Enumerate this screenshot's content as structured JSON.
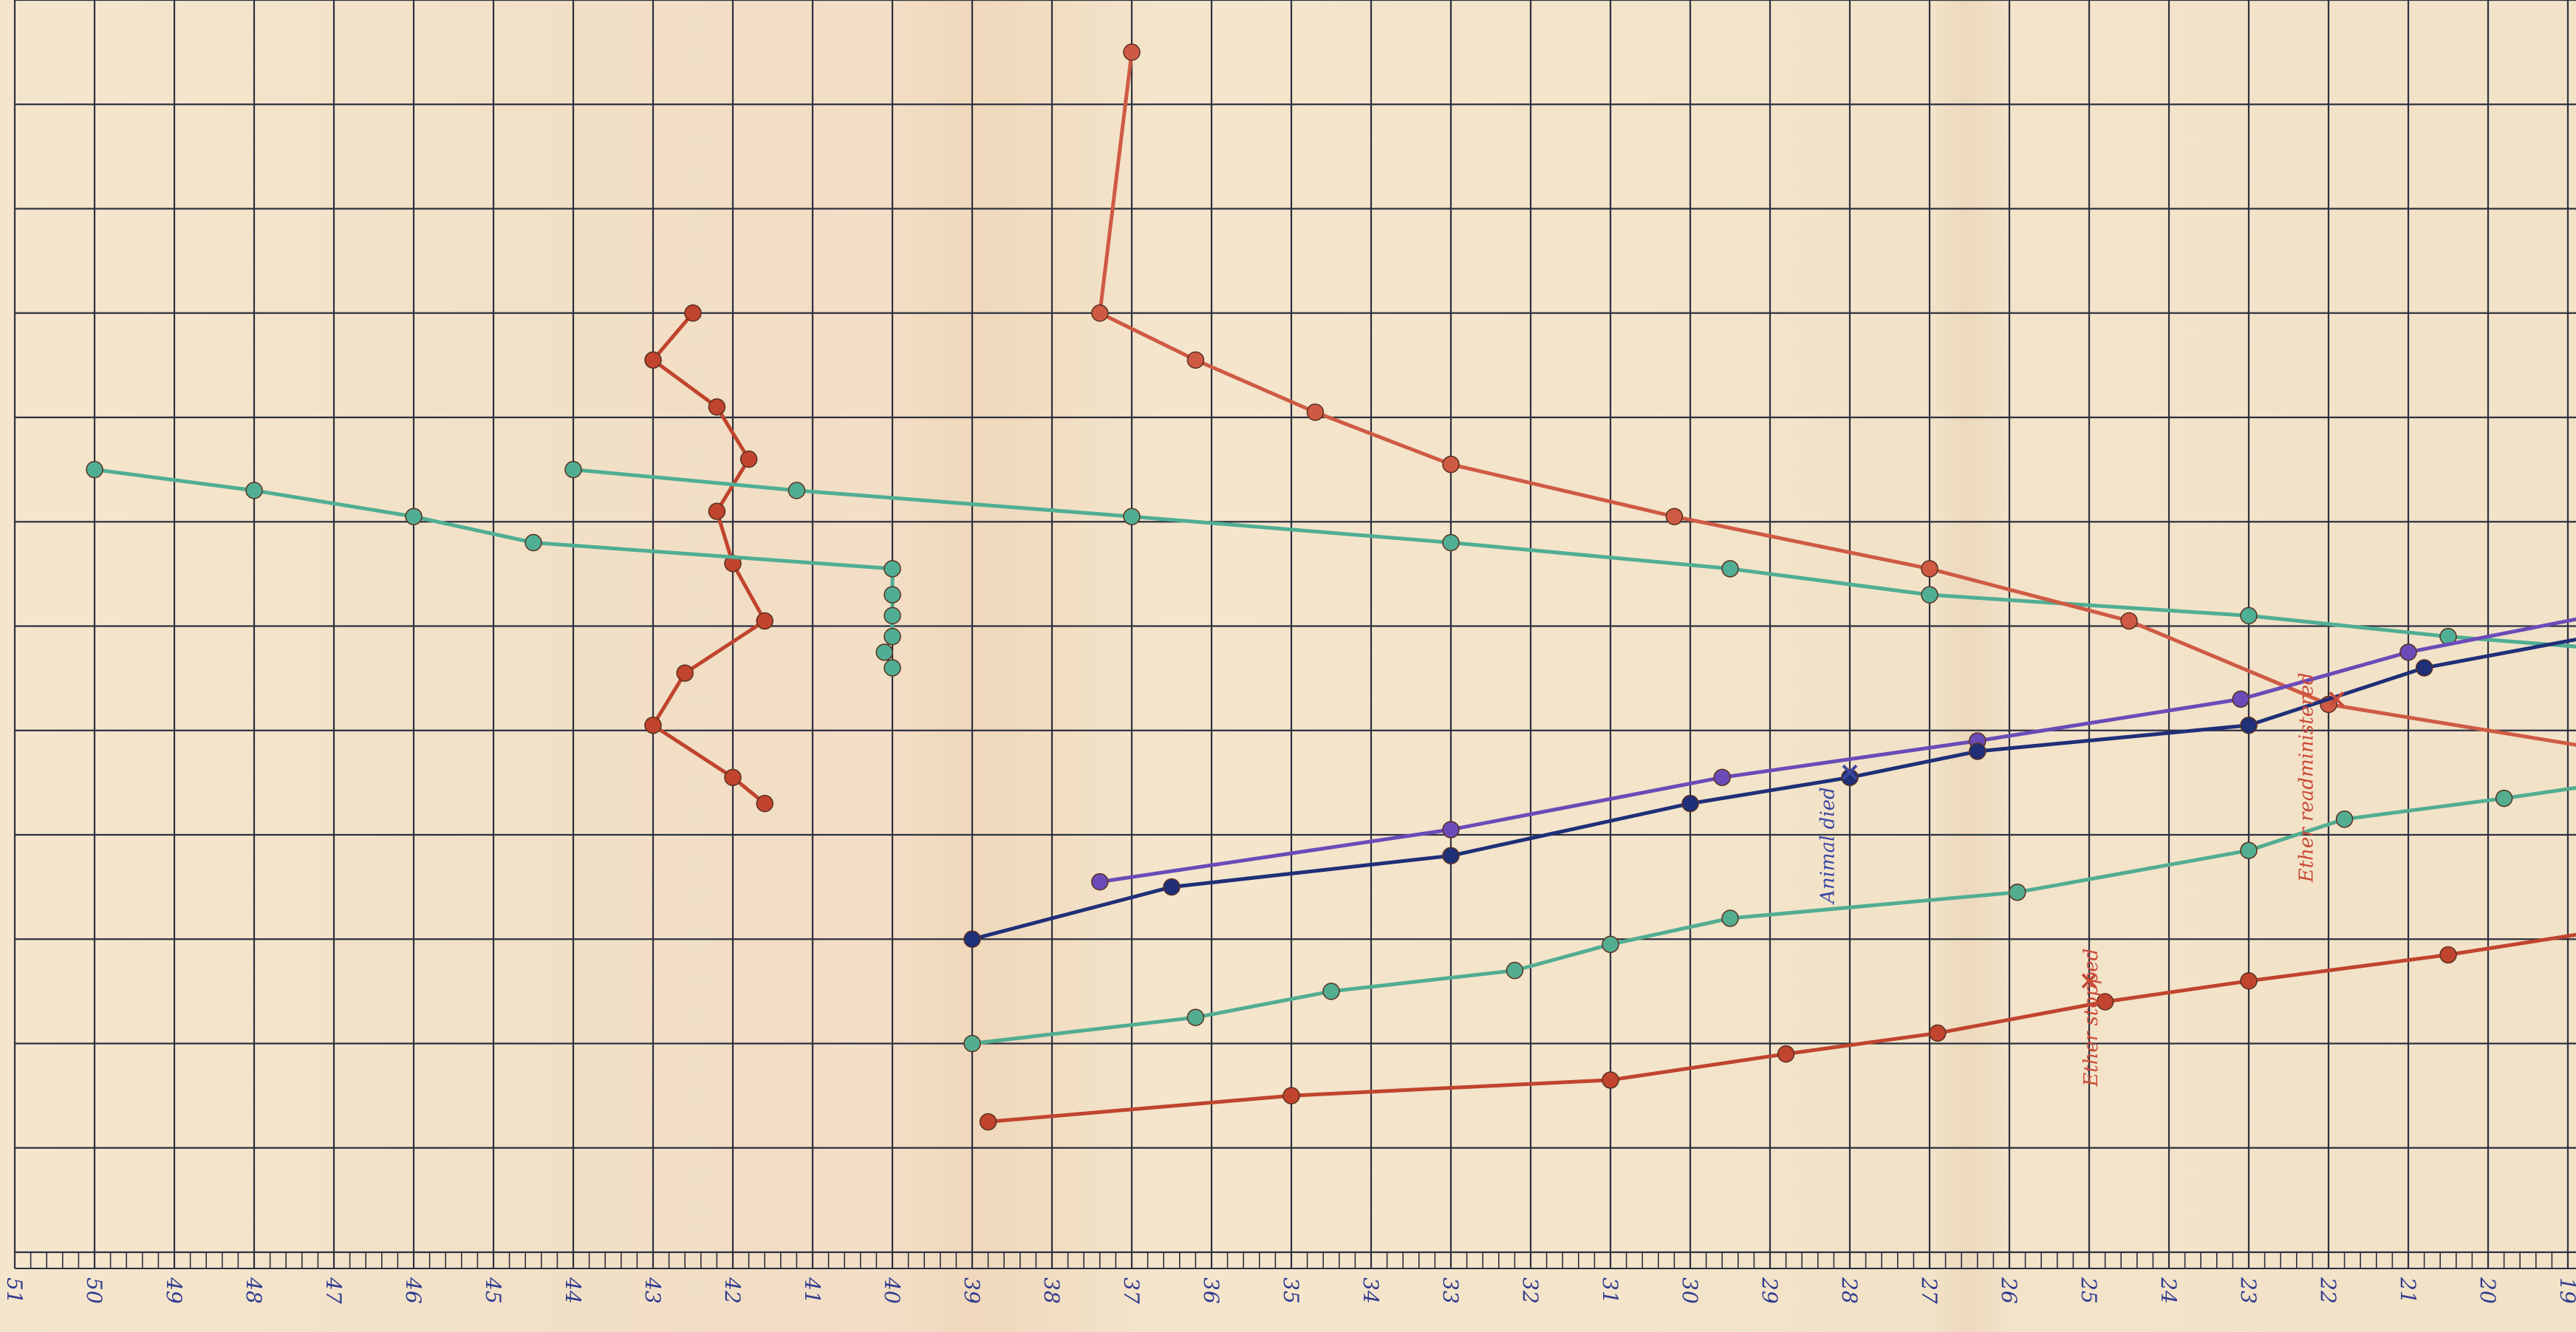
{
  "chart_data": {
    "type": "line",
    "x_axis": {
      "direction": "descending",
      "tick_labels": [
        "51",
        "50",
        "49",
        "48",
        "47",
        "46",
        "45",
        "44",
        "43",
        "42",
        "41",
        "40",
        "39",
        "38",
        "37",
        "36",
        "35",
        "34",
        "33",
        "32",
        "31",
        "30",
        "29",
        "28",
        "27",
        "26",
        "25",
        "24",
        "23",
        "22",
        "21",
        "20",
        "19"
      ]
    },
    "y_axis": {
      "tick_labels": [],
      "range": [
        0,
        12
      ]
    },
    "grid": true,
    "series": [
      {
        "color": "#c0442e",
        "points": [
          [
            42.5,
            9
          ],
          [
            43,
            8.55
          ],
          [
            42.2,
            8.1
          ],
          [
            41.8,
            7.6
          ],
          [
            42.2,
            7.1
          ],
          [
            42,
            6.6
          ],
          [
            41.6,
            6.05
          ],
          [
            42.6,
            5.55
          ],
          [
            43,
            5.05
          ],
          [
            42,
            4.55
          ],
          [
            41.6,
            4.3
          ]
        ]
      },
      {
        "color": "#4fae93",
        "points": [
          [
            50,
            7.5
          ],
          [
            48,
            7.3
          ],
          [
            46,
            7.05
          ],
          [
            44.5,
            6.8
          ],
          [
            40,
            6.55
          ],
          [
            40,
            6.3
          ],
          [
            40,
            6.1
          ],
          [
            40,
            5.9
          ],
          [
            40.1,
            5.75
          ],
          [
            40,
            5.6
          ]
        ]
      },
      {
        "color": "#4fae93",
        "points": [
          [
            44,
            7.5
          ],
          [
            41.2,
            7.3
          ],
          [
            37,
            7.05
          ],
          [
            33,
            6.8
          ],
          [
            29.5,
            6.55
          ],
          [
            27,
            6.3
          ],
          [
            23,
            6.1
          ],
          [
            20.5,
            5.9
          ],
          [
            18,
            5.75
          ]
        ]
      },
      {
        "color": "#cf5a44",
        "points": [
          [
            37,
            11.5
          ],
          [
            37.4,
            9
          ],
          [
            36.2,
            8.55
          ],
          [
            34.7,
            8.05
          ],
          [
            33,
            7.55
          ],
          [
            30.2,
            7.05
          ],
          [
            27,
            6.55
          ],
          [
            24.5,
            6.05
          ],
          [
            22,
            5.25
          ],
          [
            18,
            4.75
          ]
        ]
      },
      {
        "color": "#6a4bb8",
        "points": [
          [
            37.4,
            3.55
          ],
          [
            33,
            4.05
          ],
          [
            29.6,
            4.55
          ],
          [
            26.4,
            4.9
          ],
          [
            23.1,
            5.3
          ],
          [
            21,
            5.75
          ],
          [
            18,
            6.2
          ]
        ]
      },
      {
        "color": "#1f2f78",
        "points": [
          [
            39,
            3
          ],
          [
            36.5,
            3.5
          ],
          [
            33,
            3.8
          ],
          [
            30,
            4.3
          ],
          [
            28,
            4.55
          ],
          [
            26.4,
            4.8
          ],
          [
            23,
            5.05
          ],
          [
            20.8,
            5.6
          ],
          [
            18,
            6
          ]
        ]
      },
      {
        "color": "#52ad91",
        "points": [
          [
            39,
            2
          ],
          [
            36.2,
            2.25
          ],
          [
            34.5,
            2.5
          ],
          [
            32.2,
            2.7
          ],
          [
            31,
            2.95
          ],
          [
            29.5,
            3.2
          ],
          [
            25.9,
            3.45
          ],
          [
            23,
            3.85
          ],
          [
            21.8,
            4.15
          ],
          [
            19.8,
            4.35
          ],
          [
            18,
            4.55
          ]
        ]
      },
      {
        "color": "#c0442e",
        "points": [
          [
            38.8,
            1.25
          ],
          [
            35,
            1.5
          ],
          [
            31,
            1.65
          ],
          [
            28.8,
            1.9
          ],
          [
            26.9,
            2.1
          ],
          [
            24.8,
            2.4
          ],
          [
            23,
            2.6
          ],
          [
            20.5,
            2.85
          ],
          [
            18,
            3.15
          ]
        ]
      }
    ],
    "annotations": [
      {
        "text": "Ether stopped",
        "x": 24.9,
        "y": 2.25,
        "marker_x": 25,
        "marker_y": 2.6,
        "color": "#c94a38"
      },
      {
        "text": "Animal died",
        "x": 28.2,
        "y": 3.9,
        "marker_x": 28,
        "marker_y": 4.6,
        "color": "#3c46a0"
      },
      {
        "text": "Ether readministered",
        "x": 22.2,
        "y": 4.55,
        "marker_x": 21.9,
        "marker_y": 5.3,
        "color": "#c94a38"
      }
    ]
  }
}
